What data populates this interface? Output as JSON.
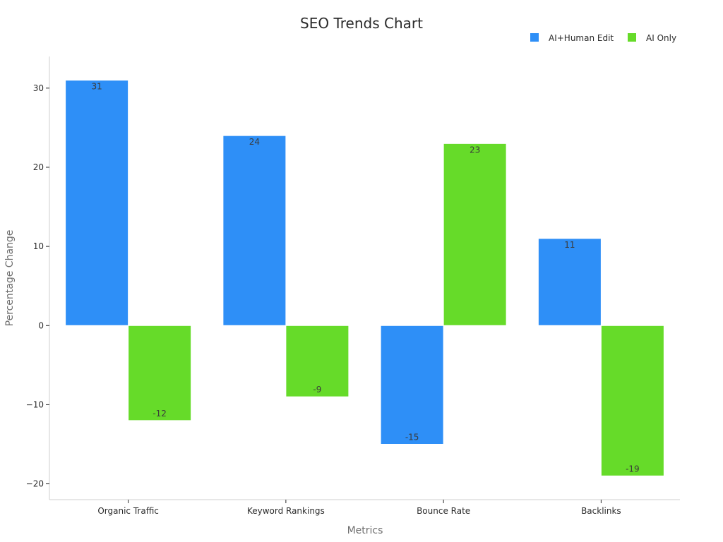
{
  "chart_data": {
    "type": "bar",
    "title": "SEO Trends Chart",
    "xlabel": "Metrics",
    "ylabel": "Percentage Change",
    "categories": [
      "Organic Traffic",
      "Keyword Rankings",
      "Bounce Rate",
      "Backlinks"
    ],
    "series": [
      {
        "name": "AI+Human Edit",
        "color": "#2E8FF7",
        "values": [
          31,
          24,
          -15,
          11
        ]
      },
      {
        "name": "AI Only",
        "color": "#66DB29",
        "values": [
          -12,
          -9,
          23,
          -19
        ]
      }
    ],
    "ylim": [
      -22,
      34
    ],
    "yticks": [
      30,
      20,
      10,
      0,
      -10,
      -20
    ],
    "ytick_labels": [
      "30",
      "20",
      "10",
      "0",
      "−10",
      "−20"
    ],
    "grid": false,
    "legend_position": "top-right"
  }
}
